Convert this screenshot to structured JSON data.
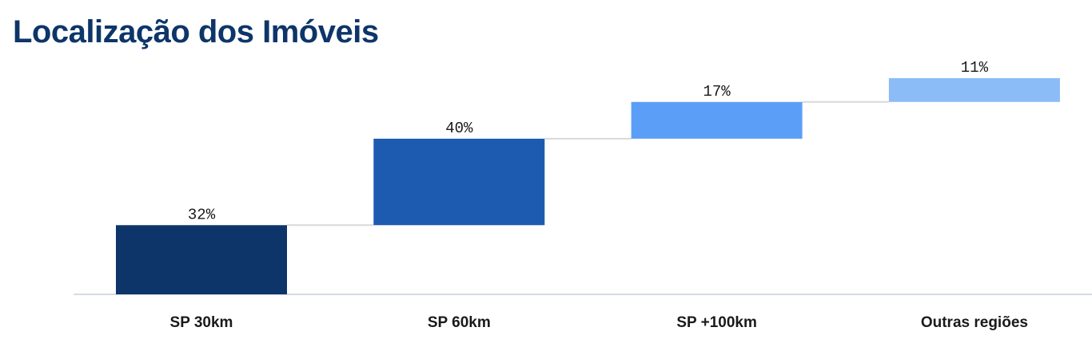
{
  "title": "Localização dos Imóveis",
  "chart_data": {
    "type": "waterfall",
    "title": "Localização dos Imóveis",
    "categories": [
      "SP 30km",
      "SP 60km",
      "SP +100km",
      "Outras regiões"
    ],
    "values": [
      32,
      40,
      17,
      11
    ],
    "value_labels": [
      "32%",
      "40%",
      "17%",
      "11%"
    ],
    "colors": [
      "#0d3569",
      "#1c5bb0",
      "#5a9ef7",
      "#8cbcf8"
    ],
    "unit": "%",
    "ylim": [
      0,
      100
    ],
    "grid": false,
    "legend": "none"
  }
}
